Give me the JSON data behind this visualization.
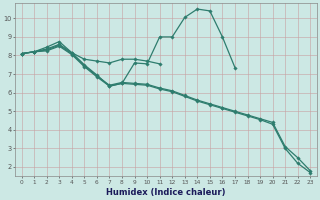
{
  "xlabel": "Humidex (Indice chaleur)",
  "background_color": "#cce8e4",
  "grid_color": "#b0c8c4",
  "line_color": "#2e7d6e",
  "xlim": [
    -0.5,
    23.5
  ],
  "ylim": [
    1.5,
    10.8
  ],
  "yticks": [
    2,
    3,
    4,
    5,
    6,
    7,
    8,
    9,
    10
  ],
  "xticks": [
    0,
    1,
    2,
    3,
    4,
    5,
    6,
    7,
    8,
    9,
    10,
    11,
    12,
    13,
    14,
    15,
    16,
    17,
    18,
    19,
    20,
    21,
    22,
    23
  ],
  "lines": [
    {
      "x": [
        0,
        1,
        2,
        3,
        4,
        5,
        6,
        7,
        8,
        9,
        10,
        11,
        12,
        13,
        14,
        15,
        16,
        17,
        18,
        19,
        20,
        21,
        22,
        23
      ],
      "y": [
        8.1,
        8.2,
        8.35,
        8.6,
        8.15,
        7.5,
        6.95,
        6.35,
        6.5,
        7.6,
        7.55,
        9.0,
        9.0,
        10.05,
        10.5,
        10.4,
        9.0,
        7.35,
        null,
        null,
        null,
        null,
        null,
        null
      ]
    },
    {
      "x": [
        0,
        1,
        2,
        3,
        4,
        5,
        6,
        7,
        8,
        9,
        10,
        11
      ],
      "y": [
        8.1,
        8.2,
        8.45,
        8.75,
        8.15,
        7.8,
        7.7,
        7.6,
        7.8,
        7.8,
        7.7,
        7.55
      ]
    },
    {
      "x": [
        0,
        1,
        2,
        3,
        4,
        5,
        6,
        7,
        8,
        9,
        10,
        11,
        12,
        13,
        14,
        15,
        16,
        17,
        18,
        19,
        20,
        21,
        22,
        23
      ],
      "y": [
        8.1,
        8.2,
        8.3,
        8.55,
        8.1,
        7.45,
        6.9,
        6.4,
        6.55,
        6.5,
        6.45,
        6.25,
        6.1,
        5.85,
        5.6,
        5.4,
        5.2,
        5.0,
        4.8,
        4.6,
        4.4,
        3.1,
        2.5,
        1.8
      ]
    },
    {
      "x": [
        0,
        1,
        2,
        3,
        4,
        5,
        6,
        7,
        8,
        9,
        10,
        11,
        12,
        13,
        14,
        15,
        16,
        17,
        18,
        19,
        20,
        21,
        22,
        23
      ],
      "y": [
        8.1,
        8.2,
        8.25,
        8.5,
        8.05,
        7.4,
        6.85,
        6.35,
        6.5,
        6.45,
        6.4,
        6.2,
        6.05,
        5.8,
        5.55,
        5.35,
        5.15,
        4.95,
        4.75,
        4.55,
        4.3,
        3.0,
        2.2,
        1.7
      ]
    }
  ]
}
